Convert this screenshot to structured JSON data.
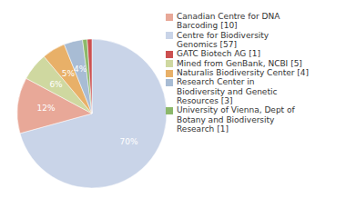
{
  "chart_data": {
    "type": "pie",
    "categories": [
      "Centre for Biodiversity\nGenomics [57]",
      "Canadian Centre for DNA\nBarcoding [10]",
      "Mined from GenBank, NCBI [5]",
      "Naturalis Biodiversity Center [4]",
      "Research Center in\nBiodiversity and Genetic\nResources [3]",
      "University of Vienna, Dept of\nBotany and Biodiversity\nResearch [1]",
      "GATC Biotech AG [1]"
    ],
    "values": [
      70,
      12,
      6,
      5,
      4,
      1,
      1
    ],
    "value_labels": [
      "70%",
      "12%",
      "6%",
      "5%",
      "4%",
      null,
      null
    ],
    "colors": [
      "#c9d4e8",
      "#e8a898",
      "#cfd8a0",
      "#e8b068",
      "#a8bcd4",
      "#8cb86a",
      "#cc5050"
    ],
    "data_labels": true,
    "legend": "upper right"
  }
}
